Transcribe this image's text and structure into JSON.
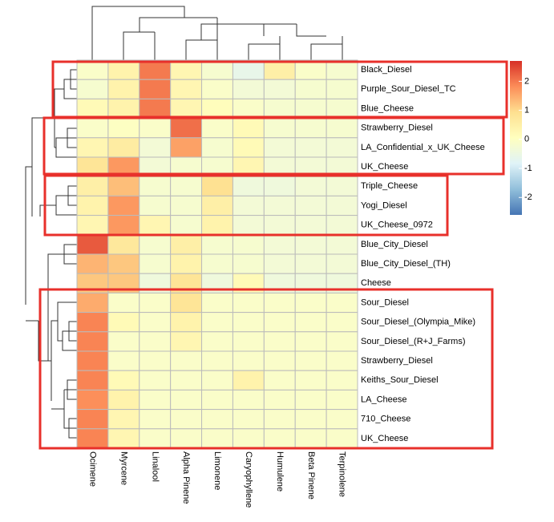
{
  "chart_data": {
    "type": "heatmap",
    "rows": [
      "Black_Diesel",
      "Purple_Sour_Diesel_TC",
      "Blue_Cheese",
      "Strawberry_Diesel",
      "LA_Confidential_x_UK_Cheese",
      "UK_Cheese",
      "Triple_Cheese",
      "Yogi_Diesel",
      "UK_Cheese_0972",
      "Blue_City_Diesel",
      "Blue_City_Diesel_(TH)",
      "Cheese",
      "Sour_Diesel",
      "Sour_Diesel_(Olympia_Mike)",
      "Sour_Diesel_(R+J_Farms)",
      "Strawberry_Diesel",
      "Keiths_Sour_Diesel",
      "LA_Cheese",
      "710_Cheese",
      "UK_Cheese"
    ],
    "columns": [
      "Ocimene",
      "Myrcene",
      "Linalool",
      "Alpha Pinene",
      "Limonene",
      "Caryophyllene",
      "Humulene",
      "Beta Pinene",
      "Terpinolene"
    ],
    "values": [
      [
        -0.1,
        0.4,
        2.0,
        0.3,
        -0.2,
        -0.6,
        0.5,
        -0.1,
        -0.2
      ],
      [
        -0.2,
        0.4,
        2.0,
        0.3,
        -0.1,
        -0.3,
        -0.3,
        -0.2,
        -0.2
      ],
      [
        0.2,
        0.4,
        2.0,
        0.3,
        0.1,
        -0.1,
        -0.2,
        -0.2,
        -0.2
      ],
      [
        -0.1,
        0.0,
        -0.1,
        2.1,
        -0.1,
        0.2,
        -0.2,
        -0.2,
        -0.2
      ],
      [
        0.3,
        0.6,
        -0.3,
        1.6,
        -0.2,
        0.2,
        -0.3,
        -0.3,
        -0.3
      ],
      [
        0.8,
        1.7,
        -0.3,
        -0.2,
        -0.2,
        0.3,
        -0.3,
        -0.3,
        -0.3
      ],
      [
        0.5,
        1.3,
        -0.2,
        -0.2,
        0.9,
        -0.4,
        -0.4,
        -0.3,
        -0.3
      ],
      [
        0.4,
        1.7,
        -0.2,
        -0.2,
        0.5,
        -0.3,
        -0.3,
        -0.3,
        -0.3
      ],
      [
        0.3,
        1.7,
        0.3,
        -0.2,
        0.4,
        -0.3,
        -0.3,
        -0.3,
        -0.3
      ],
      [
        2.3,
        0.7,
        -0.2,
        0.5,
        -0.2,
        -0.2,
        -0.3,
        -0.3,
        -0.3
      ],
      [
        1.4,
        1.2,
        -0.2,
        0.4,
        -0.2,
        -0.2,
        -0.3,
        -0.3,
        -0.3
      ],
      [
        1.2,
        1.2,
        -0.4,
        0.8,
        -0.4,
        0.2,
        -0.4,
        -0.4,
        -0.4
      ],
      [
        1.5,
        -0.1,
        -0.1,
        0.8,
        -0.1,
        -0.1,
        -0.1,
        -0.1,
        -0.1
      ],
      [
        1.9,
        0.2,
        -0.1,
        0.4,
        -0.1,
        -0.1,
        -0.1,
        -0.1,
        -0.1
      ],
      [
        1.9,
        -0.1,
        -0.1,
        0.3,
        -0.1,
        -0.1,
        -0.1,
        -0.1,
        -0.1
      ],
      [
        1.9,
        -0.1,
        -0.1,
        -0.1,
        -0.1,
        -0.1,
        -0.1,
        -0.1,
        -0.1
      ],
      [
        1.9,
        0.2,
        -0.1,
        -0.1,
        -0.1,
        0.4,
        -0.1,
        -0.1,
        -0.1
      ],
      [
        1.8,
        0.4,
        -0.1,
        -0.1,
        -0.1,
        -0.1,
        -0.1,
        -0.1,
        -0.1
      ],
      [
        1.9,
        0.3,
        -0.1,
        -0.1,
        -0.1,
        -0.1,
        -0.1,
        -0.1,
        -0.1
      ],
      [
        1.9,
        0.3,
        -0.1,
        -0.1,
        -0.1,
        -0.1,
        -0.1,
        -0.1,
        -0.1
      ]
    ],
    "colors": [
      "#4575B4",
      "#91BFDB",
      "#E0F3F8",
      "#FFFFBF",
      "#FEE090",
      "#FC8D59",
      "#D73027"
    ],
    "zlim": [
      -2.6,
      2.7
    ],
    "zticks": [
      -2,
      -1,
      0,
      1,
      2
    ]
  }
}
